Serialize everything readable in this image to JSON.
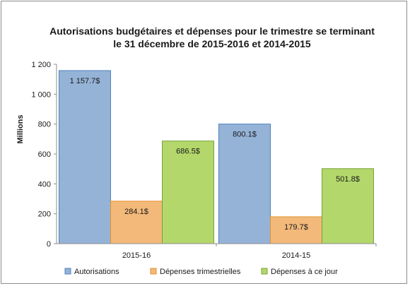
{
  "chart_data": {
    "type": "bar",
    "title_lines": [
      "Autorisations budgétaires et dépenses pour le trimestre se terminant",
      "le 31 décembre de 2015-2016 et 2014-2015"
    ],
    "ylabel": "Millions",
    "xlabel": "",
    "categories": [
      "2015-16",
      "2014-15"
    ],
    "ylim": [
      0,
      1200
    ],
    "yticks": [
      0,
      200,
      400,
      600,
      800,
      1000,
      1200
    ],
    "ytick_labels": [
      "0",
      "200",
      "400",
      "600",
      "800",
      "1 000",
      "1 200"
    ],
    "grid": false,
    "legend_position": "bottom",
    "series": [
      {
        "name": "Autorisations",
        "color": "#95b3d7",
        "border": "#4f81bd",
        "values": [
          1157.7,
          800.1
        ],
        "labels": [
          "1 157.7$",
          "800.1$"
        ]
      },
      {
        "name": "Dépenses trimestrielles",
        "color": "#f2b97a",
        "border": "#e3912e",
        "values": [
          284.1,
          179.7
        ],
        "labels": [
          "284.1$",
          "179.7$"
        ]
      },
      {
        "name": "Dépenses à ce jour",
        "color": "#b3d76b",
        "border": "#77a337",
        "values": [
          686.5,
          501.8
        ],
        "labels": [
          "686.5$",
          "501.8$"
        ]
      }
    ]
  }
}
